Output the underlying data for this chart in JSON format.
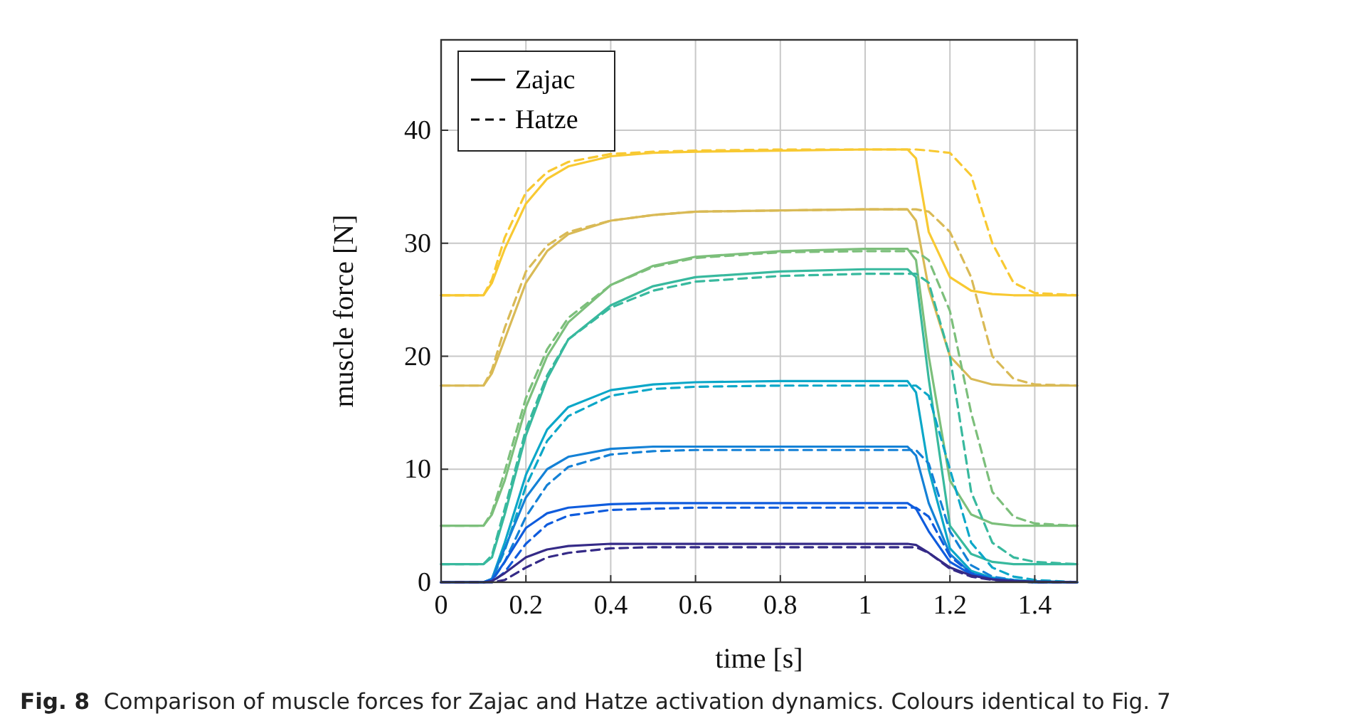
{
  "chart_data": {
    "type": "line",
    "xlabel": "time [s]",
    "ylabel": "muscle force [N]",
    "annotations": [
      "Fig. 8  Comparison of muscle forces for Zajac and Hatze activation dynamics. Colours identical to Fig. 7"
    ],
    "x": [
      0,
      0.1,
      0.12,
      0.15,
      0.2,
      0.25,
      0.3,
      0.4,
      0.5,
      0.6,
      0.8,
      1.0,
      1.1,
      1.12,
      1.15,
      1.2,
      1.25,
      1.3,
      1.35,
      1.4,
      1.5
    ],
    "xlim": [
      0,
      1.5
    ],
    "xticks": [
      0,
      0.2,
      0.4,
      0.6,
      0.8,
      1,
      1.2,
      1.4
    ],
    "ylim": [
      0,
      48
    ],
    "yticks": [
      0,
      10,
      20,
      30,
      40
    ],
    "grid": true,
    "legend": "top left",
    "marker": "none",
    "series": [
      {
        "name": "Zajac",
        "line_style": "solid",
        "color": "#f8c932",
        "values": [
          25.4,
          25.4,
          26.5,
          29.5,
          33.5,
          35.7,
          36.8,
          37.7,
          38.0,
          38.1,
          38.2,
          38.3,
          38.3,
          37.5,
          31,
          27,
          25.8,
          25.5,
          25.4,
          25.4,
          25.4
        ]
      },
      {
        "name": "Hatze",
        "line_style": "dashed",
        "color": "#f8c932",
        "values": [
          25.4,
          25.4,
          26.8,
          30.5,
          34.5,
          36.3,
          37.2,
          37.9,
          38.1,
          38.2,
          38.3,
          38.3,
          38.3,
          38.3,
          38.2,
          38,
          36,
          30,
          26.5,
          25.6,
          25.4
        ]
      },
      {
        "line_style": "solid",
        "color": "#d9ba56",
        "values": [
          17.4,
          17.4,
          18.5,
          21.5,
          26.5,
          29.3,
          30.8,
          32.0,
          32.5,
          32.8,
          32.9,
          33,
          33,
          32,
          26,
          20,
          18,
          17.5,
          17.4,
          17.4,
          17.4
        ]
      },
      {
        "line_style": "dashed",
        "color": "#d9ba56",
        "values": [
          17.4,
          17.4,
          18.8,
          22.5,
          27.5,
          29.8,
          31.0,
          32.0,
          32.5,
          32.8,
          32.9,
          33,
          33,
          33,
          32.8,
          31,
          27,
          20,
          18,
          17.5,
          17.4
        ]
      },
      {
        "line_style": "solid",
        "color": "#7cbf7b",
        "values": [
          5,
          5,
          6,
          9,
          15.5,
          20,
          23,
          26.3,
          28,
          28.8,
          29.3,
          29.5,
          29.5,
          28.5,
          20,
          9,
          6,
          5.2,
          5,
          5,
          5
        ]
      },
      {
        "line_style": "dashed",
        "color": "#7cbf7b",
        "values": [
          5,
          5,
          6.2,
          9.8,
          16.3,
          20.6,
          23.4,
          26.3,
          27.9,
          28.7,
          29.2,
          29.3,
          29.3,
          29.3,
          28.5,
          24,
          15,
          8,
          5.8,
          5.2,
          5
        ]
      },
      {
        "line_style": "solid",
        "color": "#38b99e",
        "values": [
          1.6,
          1.6,
          2.2,
          6,
          13,
          18,
          21.5,
          24.5,
          26.2,
          27,
          27.5,
          27.7,
          27.7,
          27,
          18,
          5,
          2.5,
          1.8,
          1.6,
          1.6,
          1.6
        ]
      },
      {
        "line_style": "dashed",
        "color": "#38b99e",
        "values": [
          1.6,
          1.6,
          2.4,
          6.5,
          13.5,
          18.3,
          21.5,
          24.3,
          25.8,
          26.6,
          27.1,
          27.3,
          27.3,
          27.3,
          26.5,
          20,
          8,
          3.5,
          2.2,
          1.8,
          1.6
        ]
      },
      {
        "line_style": "solid",
        "color": "#0ca7c8",
        "values": [
          0,
          0,
          0.3,
          3.5,
          9.5,
          13.5,
          15.5,
          17,
          17.5,
          17.7,
          17.8,
          17.8,
          17.8,
          16.8,
          10,
          3,
          1,
          0.4,
          0.2,
          0.1,
          0
        ]
      },
      {
        "line_style": "dashed",
        "color": "#0ca7c8",
        "values": [
          0,
          0,
          0.2,
          2.8,
          8.5,
          12.5,
          14.7,
          16.5,
          17.1,
          17.3,
          17.4,
          17.4,
          17.4,
          17.4,
          16.5,
          10,
          3.5,
          1.3,
          0.5,
          0.2,
          0
        ]
      },
      {
        "line_style": "solid",
        "color": "#1481d6",
        "values": [
          0,
          0,
          0.3,
          3,
          7.5,
          10,
          11.1,
          11.8,
          12,
          12,
          12,
          12,
          12,
          11.2,
          7,
          2.5,
          0.8,
          0.3,
          0.1,
          0,
          0
        ]
      },
      {
        "line_style": "dashed",
        "color": "#1481d6",
        "values": [
          0,
          0,
          0.1,
          1.8,
          5.8,
          8.6,
          10.2,
          11.3,
          11.6,
          11.7,
          11.7,
          11.7,
          11.7,
          11.7,
          10.5,
          4.5,
          1.5,
          0.5,
          0.2,
          0,
          0
        ]
      },
      {
        "line_style": "solid",
        "color": "#0f5cdd",
        "values": [
          0,
          0,
          0.2,
          1.8,
          4.8,
          6.1,
          6.6,
          6.9,
          7,
          7,
          7,
          7,
          7,
          6.5,
          4.5,
          1.8,
          0.7,
          0.3,
          0.1,
          0,
          0
        ]
      },
      {
        "line_style": "dashed",
        "color": "#0f5cdd",
        "values": [
          0,
          0,
          0,
          0.9,
          3.4,
          5.1,
          5.9,
          6.4,
          6.5,
          6.6,
          6.6,
          6.6,
          6.6,
          6.6,
          5.8,
          2.3,
          0.8,
          0.3,
          0.1,
          0,
          0
        ]
      },
      {
        "line_style": "solid",
        "color": "#352a87",
        "values": [
          0,
          0,
          0.1,
          0.8,
          2.2,
          2.9,
          3.2,
          3.4,
          3.4,
          3.4,
          3.4,
          3.4,
          3.4,
          3.3,
          2.6,
          1.3,
          0.6,
          0.25,
          0.1,
          0.05,
          0
        ]
      },
      {
        "line_style": "dashed",
        "color": "#352a87",
        "values": [
          0,
          0,
          0,
          0.2,
          1.3,
          2.2,
          2.6,
          3.0,
          3.1,
          3.1,
          3.1,
          3.1,
          3.1,
          3.1,
          2.6,
          1.2,
          0.5,
          0.2,
          0.1,
          0,
          0
        ]
      }
    ]
  }
}
